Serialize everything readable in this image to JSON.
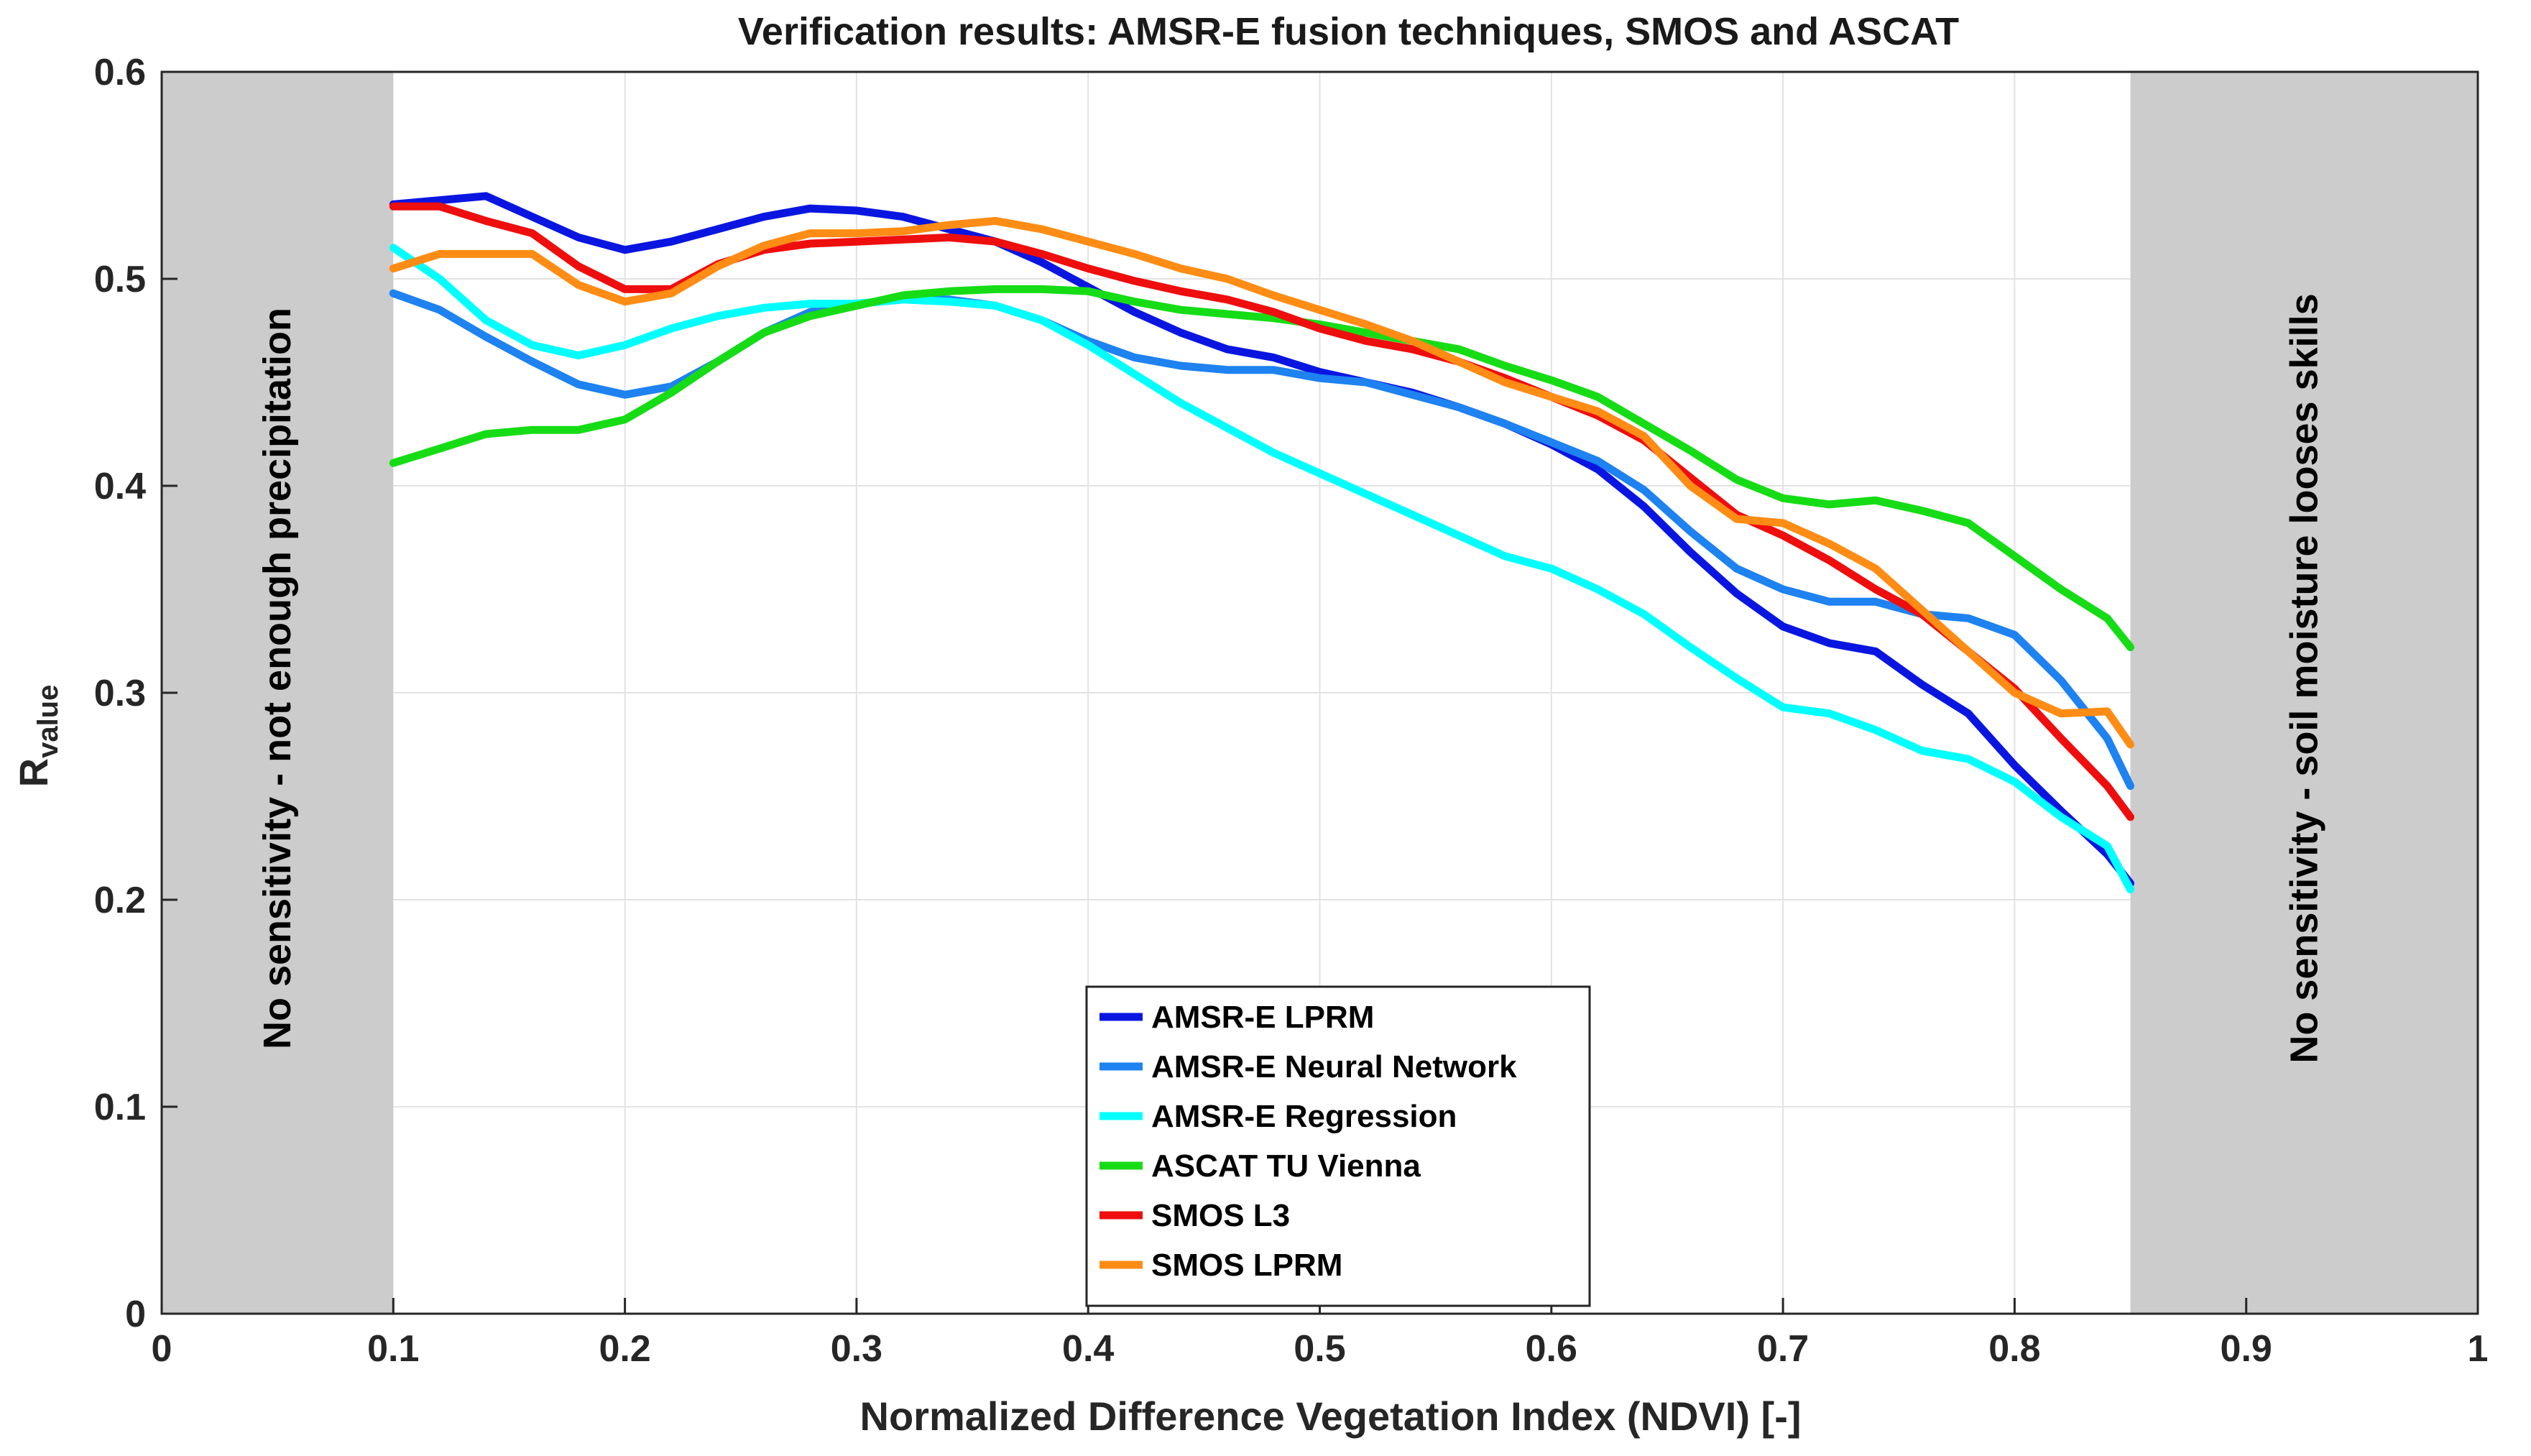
{
  "chart_data": {
    "type": "line",
    "title": "Verification results: AMSR-E fusion techniques, SMOS and ASCAT",
    "xlabel": "Normalized Difference Vegetation Index (NDVI) [-]",
    "ylabel": {
      "main": "R",
      "subscript": "value"
    },
    "xlim": [
      0,
      1
    ],
    "ylim": [
      0,
      0.6
    ],
    "grid": true,
    "legend_position": "bottom-center",
    "x_ticks": [
      {
        "value": 0,
        "label": "0"
      },
      {
        "value": 0.1,
        "label": "0.1"
      },
      {
        "value": 0.2,
        "label": "0.2"
      },
      {
        "value": 0.3,
        "label": "0.3"
      },
      {
        "value": 0.4,
        "label": "0.4"
      },
      {
        "value": 0.5,
        "label": "0.5"
      },
      {
        "value": 0.6,
        "label": "0.6"
      },
      {
        "value": 0.7,
        "label": "0.7"
      },
      {
        "value": 0.8,
        "label": "0.8"
      },
      {
        "value": 0.9,
        "label": "0.9"
      },
      {
        "value": 1,
        "label": "1"
      }
    ],
    "y_ticks": [
      {
        "value": 0,
        "label": "0"
      },
      {
        "value": 0.1,
        "label": "0.1"
      },
      {
        "value": 0.2,
        "label": "0.2"
      },
      {
        "value": 0.3,
        "label": "0.3"
      },
      {
        "value": 0.4,
        "label": "0.4"
      },
      {
        "value": 0.5,
        "label": "0.5"
      },
      {
        "value": 0.6,
        "label": "0.6"
      }
    ],
    "shaded_regions": [
      {
        "name": "left",
        "x_range": [
          0,
          0.1
        ],
        "color": "#cccccc",
        "label": "No sensitivity - not enough precipitation"
      },
      {
        "name": "right",
        "x_range": [
          0.85,
          1
        ],
        "color": "#cccccc",
        "label": "No sensitivity - soil moisture looses skills"
      }
    ],
    "series": [
      {
        "name": "AMSR-E LPRM",
        "color": "#0a16e0",
        "x": [
          0.1,
          0.12,
          0.14,
          0.16,
          0.18,
          0.2,
          0.22,
          0.24,
          0.26,
          0.28,
          0.3,
          0.32,
          0.34,
          0.36,
          0.38,
          0.4,
          0.42,
          0.44,
          0.46,
          0.48,
          0.5,
          0.52,
          0.54,
          0.56,
          0.58,
          0.6,
          0.62,
          0.64,
          0.66,
          0.68,
          0.7,
          0.72,
          0.74,
          0.76,
          0.78,
          0.8,
          0.82,
          0.84,
          0.85
        ],
        "values": [
          0.536,
          0.538,
          0.54,
          0.53,
          0.52,
          0.514,
          0.518,
          0.524,
          0.53,
          0.534,
          0.533,
          0.53,
          0.524,
          0.518,
          0.508,
          0.496,
          0.484,
          0.474,
          0.466,
          0.462,
          0.455,
          0.45,
          0.445,
          0.438,
          0.43,
          0.42,
          0.408,
          0.39,
          0.368,
          0.348,
          0.332,
          0.324,
          0.32,
          0.304,
          0.29,
          0.265,
          0.243,
          0.222,
          0.208
        ]
      },
      {
        "name": "AMSR-E Neural Network",
        "color": "#1e82f0",
        "x": [
          0.1,
          0.12,
          0.14,
          0.16,
          0.18,
          0.2,
          0.22,
          0.24,
          0.26,
          0.28,
          0.3,
          0.32,
          0.34,
          0.36,
          0.38,
          0.4,
          0.42,
          0.44,
          0.46,
          0.48,
          0.5,
          0.52,
          0.54,
          0.56,
          0.58,
          0.6,
          0.62,
          0.64,
          0.66,
          0.68,
          0.7,
          0.72,
          0.74,
          0.76,
          0.78,
          0.8,
          0.82,
          0.84,
          0.85
        ],
        "values": [
          0.493,
          0.485,
          0.472,
          0.46,
          0.449,
          0.444,
          0.448,
          0.46,
          0.474,
          0.484,
          0.488,
          0.49,
          0.49,
          0.487,
          0.48,
          0.47,
          0.462,
          0.458,
          0.456,
          0.456,
          0.452,
          0.45,
          0.444,
          0.438,
          0.43,
          0.421,
          0.412,
          0.398,
          0.378,
          0.36,
          0.35,
          0.344,
          0.344,
          0.338,
          0.336,
          0.328,
          0.306,
          0.278,
          0.255
        ]
      },
      {
        "name": "AMSR-E Regression",
        "color": "#00ffff",
        "x": [
          0.1,
          0.12,
          0.14,
          0.16,
          0.18,
          0.2,
          0.22,
          0.24,
          0.26,
          0.28,
          0.3,
          0.32,
          0.34,
          0.36,
          0.38,
          0.4,
          0.42,
          0.44,
          0.46,
          0.48,
          0.5,
          0.52,
          0.54,
          0.56,
          0.58,
          0.6,
          0.62,
          0.64,
          0.66,
          0.68,
          0.7,
          0.72,
          0.74,
          0.76,
          0.78,
          0.8,
          0.82,
          0.84,
          0.85
        ],
        "values": [
          0.515,
          0.5,
          0.48,
          0.468,
          0.463,
          0.468,
          0.476,
          0.482,
          0.486,
          0.488,
          0.488,
          0.49,
          0.489,
          0.487,
          0.48,
          0.468,
          0.454,
          0.44,
          0.428,
          0.416,
          0.406,
          0.396,
          0.386,
          0.376,
          0.366,
          0.36,
          0.35,
          0.338,
          0.322,
          0.307,
          0.293,
          0.29,
          0.282,
          0.272,
          0.268,
          0.257,
          0.24,
          0.226,
          0.205
        ]
      },
      {
        "name": "ASCAT TU Vienna",
        "color": "#16dc16",
        "x": [
          0.1,
          0.12,
          0.14,
          0.16,
          0.18,
          0.2,
          0.22,
          0.24,
          0.26,
          0.28,
          0.3,
          0.32,
          0.34,
          0.36,
          0.38,
          0.4,
          0.42,
          0.44,
          0.46,
          0.48,
          0.5,
          0.52,
          0.54,
          0.56,
          0.58,
          0.6,
          0.62,
          0.64,
          0.66,
          0.68,
          0.7,
          0.72,
          0.74,
          0.76,
          0.78,
          0.8,
          0.82,
          0.84,
          0.85
        ],
        "values": [
          0.411,
          0.418,
          0.425,
          0.427,
          0.427,
          0.432,
          0.445,
          0.46,
          0.474,
          0.482,
          0.487,
          0.492,
          0.494,
          0.495,
          0.495,
          0.494,
          0.489,
          0.485,
          0.483,
          0.481,
          0.478,
          0.474,
          0.47,
          0.466,
          0.458,
          0.451,
          0.443,
          0.43,
          0.417,
          0.403,
          0.394,
          0.391,
          0.393,
          0.388,
          0.382,
          0.366,
          0.35,
          0.336,
          0.322
        ]
      },
      {
        "name": "SMOS L3",
        "color": "#ee0e0e",
        "x": [
          0.1,
          0.12,
          0.14,
          0.16,
          0.18,
          0.2,
          0.22,
          0.24,
          0.26,
          0.28,
          0.3,
          0.32,
          0.34,
          0.36,
          0.38,
          0.4,
          0.42,
          0.44,
          0.46,
          0.48,
          0.5,
          0.52,
          0.54,
          0.56,
          0.58,
          0.6,
          0.62,
          0.64,
          0.66,
          0.68,
          0.7,
          0.72,
          0.74,
          0.76,
          0.78,
          0.8,
          0.82,
          0.84,
          0.85
        ],
        "values": [
          0.535,
          0.535,
          0.528,
          0.522,
          0.506,
          0.495,
          0.495,
          0.507,
          0.514,
          0.517,
          0.518,
          0.519,
          0.52,
          0.518,
          0.512,
          0.505,
          0.499,
          0.494,
          0.49,
          0.484,
          0.476,
          0.47,
          0.466,
          0.46,
          0.452,
          0.443,
          0.434,
          0.422,
          0.404,
          0.386,
          0.376,
          0.364,
          0.35,
          0.338,
          0.32,
          0.302,
          0.278,
          0.255,
          0.24
        ]
      },
      {
        "name": "SMOS LPRM",
        "color": "#ff8c14",
        "x": [
          0.1,
          0.12,
          0.14,
          0.16,
          0.18,
          0.2,
          0.22,
          0.24,
          0.26,
          0.28,
          0.3,
          0.32,
          0.34,
          0.36,
          0.38,
          0.4,
          0.42,
          0.44,
          0.46,
          0.48,
          0.5,
          0.52,
          0.54,
          0.56,
          0.58,
          0.6,
          0.62,
          0.64,
          0.66,
          0.68,
          0.7,
          0.72,
          0.74,
          0.76,
          0.78,
          0.8,
          0.82,
          0.84,
          0.85
        ],
        "values": [
          0.505,
          0.512,
          0.512,
          0.512,
          0.497,
          0.489,
          0.493,
          0.506,
          0.516,
          0.522,
          0.522,
          0.523,
          0.526,
          0.528,
          0.524,
          0.518,
          0.512,
          0.505,
          0.5,
          0.492,
          0.485,
          0.478,
          0.47,
          0.46,
          0.45,
          0.443,
          0.436,
          0.424,
          0.4,
          0.384,
          0.382,
          0.372,
          0.36,
          0.34,
          0.32,
          0.3,
          0.29,
          0.291,
          0.275
        ]
      }
    ]
  }
}
